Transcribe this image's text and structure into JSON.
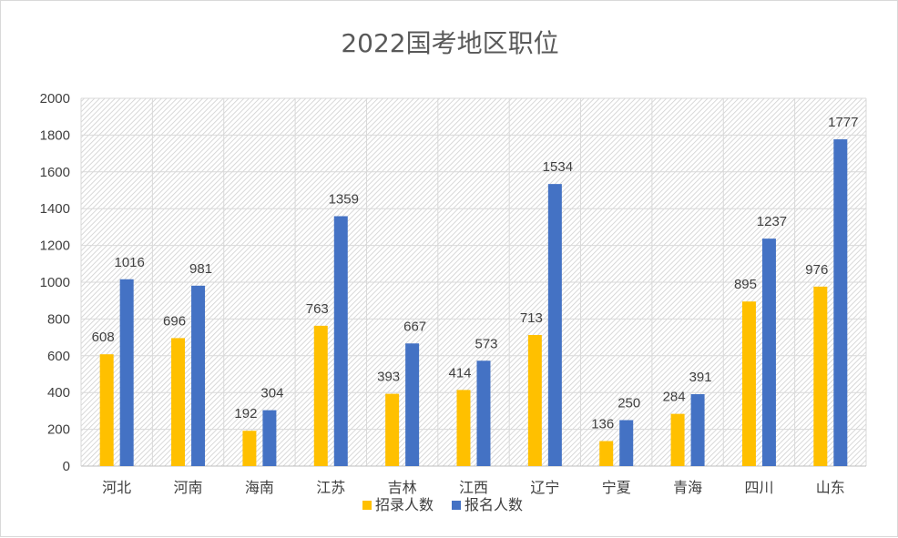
{
  "chart_data": {
    "type": "bar",
    "title": "2022国考地区职位",
    "categories": [
      "河北",
      "河南",
      "海南",
      "江苏",
      "吉林",
      "江西",
      "辽宁",
      "宁夏",
      "青海",
      "四川",
      "山东"
    ],
    "series": [
      {
        "name": "招录人数",
        "color": "#FFC000",
        "values": [
          608,
          696,
          192,
          763,
          393,
          414,
          713,
          136,
          284,
          895,
          976
        ]
      },
      {
        "name": "报名人数",
        "color": "#4472C4",
        "values": [
          1016,
          981,
          304,
          1359,
          667,
          573,
          1534,
          250,
          391,
          1237,
          1777
        ]
      }
    ],
    "ylim": [
      0,
      2000
    ],
    "yticks": [
      0,
      200,
      400,
      600,
      800,
      1000,
      1200,
      1400,
      1600,
      1800,
      2000
    ],
    "grid": true,
    "legend_position": "bottom",
    "data_labels": true
  }
}
